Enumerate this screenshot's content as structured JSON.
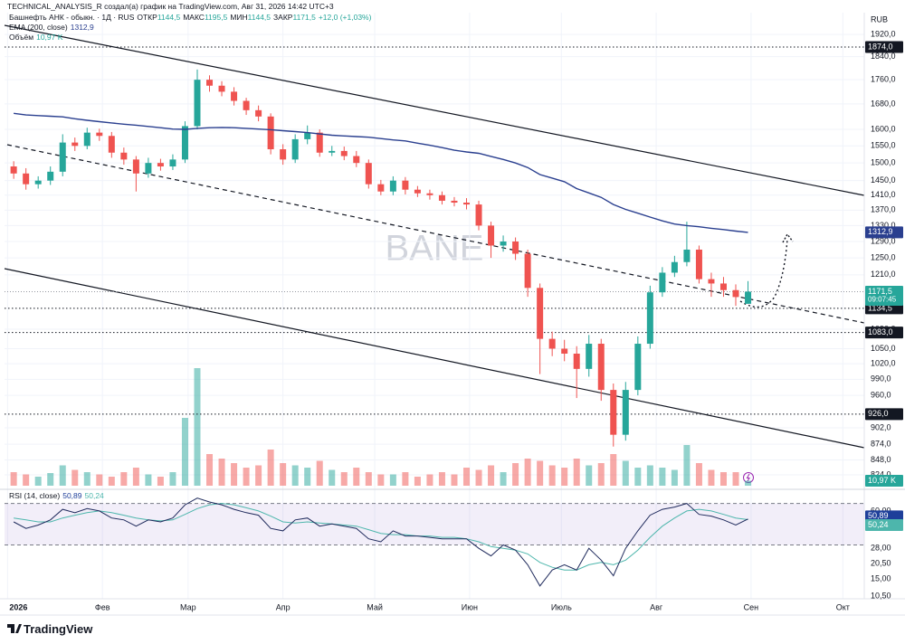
{
  "header": "TECHNICAL_ANALYSIS_R создал(а) график на TradingView.com, Авг 31, 2026 14:42 UTC+3",
  "brand": "TradingView",
  "chart_data": {
    "type": "candlestick",
    "title": "Башнефть АНК - обыкн. · 1Д · RUS",
    "currency": "RUB",
    "watermark": "BANE",
    "ohlc_legend": [
      {
        "name": "ОТКР",
        "value": "1144,5"
      },
      {
        "name": "МАКС",
        "value": "1195,5"
      },
      {
        "name": "МИН",
        "value": "1144,5"
      },
      {
        "name": "ЗАКР",
        "value": "1171,5"
      }
    ],
    "change": "+12,0 (+1,03%)",
    "up_color": "#26a69a",
    "down_color": "#ef5350",
    "log_scale": true,
    "grid": true,
    "x": [
      2,
      6,
      10,
      14,
      18,
      22,
      26,
      30,
      34,
      38,
      42,
      46,
      50,
      54,
      58,
      62,
      66,
      70,
      74,
      78,
      82,
      86,
      90,
      94,
      98,
      102,
      106,
      110,
      114,
      118,
      122,
      126,
      130,
      134,
      138,
      142,
      146,
      150,
      154,
      158,
      162,
      166,
      170,
      174,
      178,
      182,
      186,
      190,
      194,
      198,
      202,
      206,
      210,
      214,
      218,
      222,
      226,
      230,
      234,
      238,
      242
    ],
    "xlim": [
      -1,
      280
    ],
    "xticks": [
      {
        "value": 0,
        "label": "2026"
      },
      {
        "value": 31,
        "label": "Фев"
      },
      {
        "value": 59,
        "label": "Мар"
      },
      {
        "value": 90,
        "label": "Апр"
      },
      {
        "value": 120,
        "label": "Май"
      },
      {
        "value": 151,
        "label": "Июн"
      },
      {
        "value": 181,
        "label": "Июль"
      },
      {
        "value": 212,
        "label": "Авг"
      },
      {
        "value": 243,
        "label": "Сен"
      },
      {
        "value": 273,
        "label": "Окт"
      }
    ],
    "candles": {
      "open": [
        1490,
        1470,
        1440,
        1450,
        1475,
        1560,
        1550,
        1590,
        1580,
        1530,
        1510,
        1470,
        1500,
        1490,
        1510,
        1610,
        1760,
        1740,
        1720,
        1690,
        1660,
        1640,
        1540,
        1510,
        1570,
        1590,
        1530,
        1535,
        1520,
        1500,
        1440,
        1420,
        1450,
        1425,
        1415,
        1410,
        1395,
        1390,
        1385,
        1330,
        1280,
        1290,
        1260,
        1180,
        1070,
        1050,
        1040,
        1010,
        1060,
        970,
        890,
        970,
        1060,
        1170,
        1215,
        1240,
        1270,
        1200,
        1190,
        1175,
        1144.5
      ],
      "high": [
        1505,
        1485,
        1462,
        1490,
        1585,
        1575,
        1605,
        1602,
        1592,
        1545,
        1520,
        1515,
        1512,
        1525,
        1625,
        1795,
        1775,
        1755,
        1735,
        1700,
        1675,
        1650,
        1555,
        1585,
        1612,
        1600,
        1550,
        1548,
        1535,
        1510,
        1452,
        1462,
        1460,
        1435,
        1425,
        1420,
        1405,
        1402,
        1395,
        1340,
        1305,
        1300,
        1270,
        1190,
        1085,
        1068,
        1055,
        1078,
        1070,
        982,
        985,
        1075,
        1185,
        1228,
        1255,
        1340,
        1280,
        1215,
        1205,
        1188,
        1195.5
      ],
      "low": [
        1455,
        1425,
        1428,
        1438,
        1462,
        1535,
        1540,
        1565,
        1515,
        1495,
        1420,
        1458,
        1478,
        1480,
        1500,
        1600,
        1720,
        1705,
        1675,
        1645,
        1625,
        1525,
        1495,
        1500,
        1555,
        1518,
        1520,
        1508,
        1488,
        1428,
        1410,
        1410,
        1412,
        1405,
        1398,
        1385,
        1380,
        1372,
        1318,
        1250,
        1265,
        1245,
        1160,
        1000,
        1035,
        1025,
        955,
        995,
        950,
        870,
        880,
        960,
        1050,
        1160,
        1205,
        1230,
        1190,
        1160,
        1160,
        1140,
        1144.5
      ],
      "close": [
        1470,
        1440,
        1450,
        1475,
        1560,
        1550,
        1590,
        1580,
        1530,
        1510,
        1470,
        1500,
        1490,
        1510,
        1610,
        1760,
        1740,
        1720,
        1690,
        1660,
        1640,
        1540,
        1510,
        1570,
        1590,
        1530,
        1535,
        1520,
        1500,
        1440,
        1420,
        1450,
        1425,
        1415,
        1410,
        1395,
        1390,
        1385,
        1330,
        1280,
        1290,
        1260,
        1180,
        1070,
        1050,
        1040,
        1010,
        1060,
        970,
        890,
        970,
        1060,
        1170,
        1215,
        1240,
        1270,
        1200,
        1190,
        1175,
        1159.5,
        1171.5
      ]
    },
    "ylim": [
      807,
      2002
    ],
    "yticks": [
      {
        "value": 824,
        "label": "824,0"
      },
      {
        "value": 848,
        "label": "848,0"
      },
      {
        "value": 874,
        "label": "874,0"
      },
      {
        "value": 902,
        "label": "902,0"
      },
      {
        "value": 960,
        "label": "960,0"
      },
      {
        "value": 990,
        "label": "990,0"
      },
      {
        "value": 1020,
        "label": "1020,0"
      },
      {
        "value": 1050,
        "label": "1050,0"
      },
      {
        "value": 1090,
        "label": "1090,0"
      },
      {
        "value": 1210,
        "label": "1210,0"
      },
      {
        "value": 1250,
        "label": "1250,0"
      },
      {
        "value": 1290,
        "label": "1290,0"
      },
      {
        "value": 1330,
        "label": "1330,0"
      },
      {
        "value": 1370,
        "label": "1370,0"
      },
      {
        "value": 1410,
        "label": "1410,0"
      },
      {
        "value": 1450,
        "label": "1450,0"
      },
      {
        "value": 1500,
        "label": "1500,0"
      },
      {
        "value": 1550,
        "label": "1550,0"
      },
      {
        "value": 1600,
        "label": "1600,0"
      },
      {
        "value": 1680,
        "label": "1680,0"
      },
      {
        "value": 1760,
        "label": "1760,0"
      },
      {
        "value": 1840,
        "label": "1840,0"
      },
      {
        "value": 1920,
        "label": "1920,0"
      }
    ],
    "levels": [
      {
        "value": 1874,
        "label": "1874,0",
        "color": "#131722"
      },
      {
        "value": 1134.5,
        "label": "1134,5",
        "color": "#131722"
      },
      {
        "value": 1083,
        "label": "1083,0",
        "color": "#131722"
      },
      {
        "value": 926,
        "label": "926,0",
        "color": "#131722"
      }
    ],
    "last_price": {
      "value": 1171.5,
      "label": "1171,5",
      "countdown": "09:07:45",
      "color": "#26a69a"
    },
    "ema": {
      "name": "EMA (200, close)",
      "color": "#2a3f8f",
      "value_label": "1312,9",
      "values": [
        1650,
        1645,
        1643,
        1641,
        1639,
        1633,
        1628,
        1624,
        1620,
        1616,
        1613,
        1609,
        1605,
        1601,
        1600,
        1603,
        1605,
        1606,
        1605,
        1603,
        1601,
        1599,
        1596,
        1593,
        1590,
        1586,
        1582,
        1580,
        1578,
        1576,
        1572,
        1568,
        1565,
        1558,
        1552,
        1545,
        1537,
        1532,
        1528,
        1519,
        1510,
        1500,
        1487,
        1467,
        1457,
        1447,
        1428,
        1416,
        1404,
        1385,
        1372,
        1362,
        1352,
        1342,
        1334,
        1330,
        1327,
        1323,
        1320,
        1316,
        1312.9
      ]
    },
    "volume": {
      "name": "Объём",
      "value_label": "10,97 K",
      "ylim": [
        0,
        350
      ],
      "values": [
        30,
        25,
        20,
        28,
        45,
        35,
        30,
        25,
        20,
        30,
        40,
        25,
        20,
        30,
        150,
        260,
        70,
        60,
        50,
        40,
        45,
        80,
        50,
        45,
        40,
        55,
        35,
        30,
        40,
        30,
        25,
        25,
        30,
        20,
        25,
        30,
        25,
        40,
        35,
        45,
        30,
        50,
        60,
        55,
        45,
        40,
        60,
        45,
        50,
        70,
        55,
        40,
        45,
        40,
        35,
        90,
        50,
        35,
        30,
        30,
        10.97
      ]
    },
    "rsi": {
      "name": "RSI (14, close)",
      "color": "#1f2a5c",
      "value_label": "50,89",
      "label_color": "#1e3f9a",
      "values": [
        48,
        42,
        45,
        50,
        62,
        58,
        63,
        60,
        52,
        50,
        44,
        50,
        48,
        52,
        68,
        78,
        72,
        68,
        62,
        58,
        55,
        42,
        40,
        50,
        52,
        44,
        46,
        44,
        42,
        34,
        32,
        40,
        36,
        36,
        35,
        34,
        34,
        34,
        28,
        24,
        30,
        27,
        20,
        13,
        18,
        20,
        18,
        28,
        22,
        16,
        28,
        40,
        55,
        62,
        65,
        70,
        56,
        54,
        50,
        45,
        50.89
      ],
      "ma": {
        "color": "#4db6ac",
        "value_label": "50,24",
        "values": [
          52,
          50,
          48,
          48,
          52,
          55,
          58,
          60,
          58,
          55,
          52,
          50,
          49,
          50,
          56,
          63,
          68,
          70,
          68,
          64,
          60,
          54,
          48,
          47,
          48,
          47,
          46,
          45,
          44,
          41,
          38,
          37,
          37,
          36,
          36,
          35,
          35,
          34,
          32,
          29,
          28,
          27,
          25,
          21,
          19,
          18,
          18,
          20,
          21,
          20,
          22,
          27,
          35,
          44,
          52,
          60,
          62,
          60,
          56,
          52,
          50.24
        ]
      },
      "log_scale": true,
      "ylim": [
        10,
        82
      ],
      "band": [
        30,
        70
      ],
      "band_color": "#7e57c2",
      "yticks": [
        {
          "value": 60,
          "label": "60,00"
        },
        {
          "value": 28,
          "label": "28,00"
        },
        {
          "value": 20.5,
          "label": "20,50"
        },
        {
          "value": 15,
          "label": "15,00"
        },
        {
          "value": 10.5,
          "label": "10,50"
        }
      ]
    }
  }
}
